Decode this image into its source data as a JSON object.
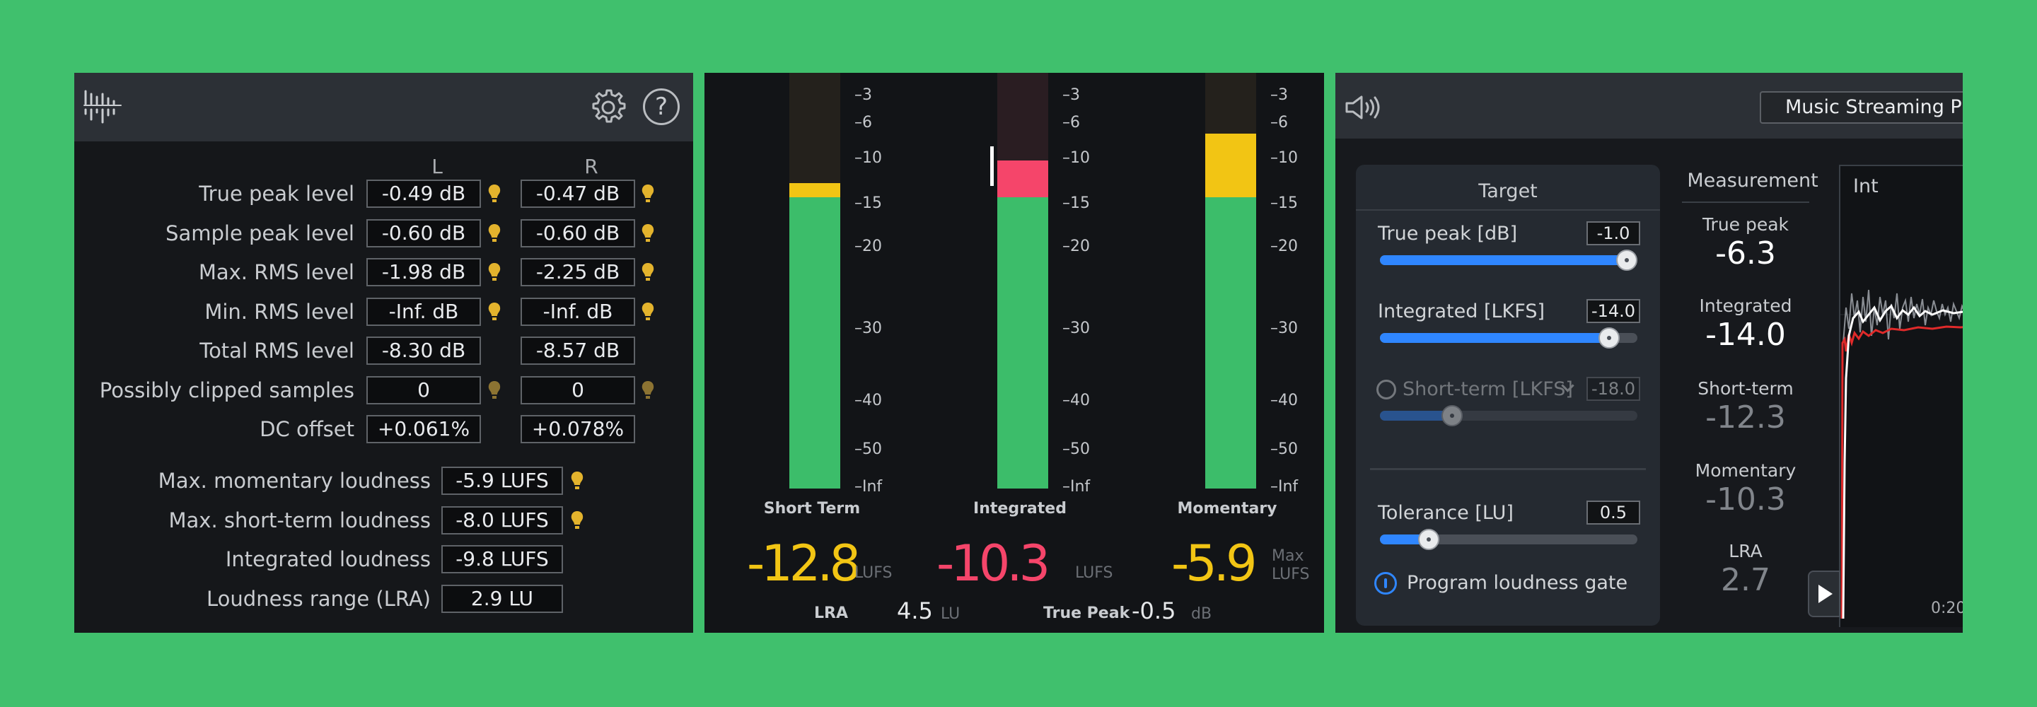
{
  "statistics": {
    "columns": {
      "left": "L",
      "right": "R"
    },
    "rows": [
      {
        "label": "True peak level",
        "left": "-0.49 dB",
        "right": "-0.47 dB",
        "left_indicator": "on",
        "right_indicator": "on"
      },
      {
        "label": "Sample peak level",
        "left": "-0.60 dB",
        "right": "-0.60 dB",
        "left_indicator": "on",
        "right_indicator": "on"
      },
      {
        "label": "Max. RMS level",
        "left": "-1.98 dB",
        "right": "-2.25 dB",
        "left_indicator": "on",
        "right_indicator": "on"
      },
      {
        "label": "Min. RMS level",
        "left": "-Inf. dB",
        "right": "-Inf. dB",
        "left_indicator": "on",
        "right_indicator": "on"
      },
      {
        "label": "Total RMS level",
        "left": "-8.30 dB",
        "right": "-8.57 dB"
      },
      {
        "label": "Possibly clipped samples",
        "left": "0",
        "right": "0",
        "left_indicator": "dim",
        "right_indicator": "dim"
      },
      {
        "label": "DC offset",
        "left": "+0.061%",
        "right": "+0.078%"
      }
    ],
    "loudness_rows": [
      {
        "label": "Max. momentary loudness",
        "value": "-5.9 LUFS",
        "indicator": "on"
      },
      {
        "label": "Max. short-term loudness",
        "value": "-8.0 LUFS",
        "indicator": "on"
      },
      {
        "label": "Integrated loudness",
        "value": "-9.8 LUFS"
      },
      {
        "label": "Loudness range (LRA)",
        "value": "2.9 LU"
      }
    ]
  },
  "meters": {
    "scale_ticks": [
      "-3",
      "-6",
      "-10",
      "-15",
      "-20",
      "-30",
      "-40",
      "-50",
      "-Inf"
    ],
    "columns": [
      {
        "label": "Short Term",
        "value": "-12.8",
        "unit": "LUFS",
        "color": "#f2c514",
        "level_db": -12.8
      },
      {
        "label": "Integrated",
        "value": "-10.3",
        "unit": "LUFS",
        "color": "#f5456a",
        "level_db": -10.3
      },
      {
        "label": "Momentary",
        "value": "-5.9",
        "unit": "LUFS",
        "unit_prefix": "Max",
        "color": "#f2c514",
        "level_db": -5.9
      }
    ],
    "bottom": {
      "lra_label": "LRA",
      "lra_value": "4.5",
      "lra_unit": "LU",
      "true_peak_label": "True Peak",
      "true_peak_value": "-0.5",
      "true_peak_unit": "dB"
    }
  },
  "loudness_target": {
    "preset": "Music Streaming Platforms",
    "target": {
      "title": "Target",
      "sliders": [
        {
          "label": "True peak [dB]",
          "value": "-1.0",
          "fraction": 0.96,
          "enabled": true
        },
        {
          "label": "Integrated [LKFS]",
          "value": "-14.0",
          "fraction": 0.89,
          "enabled": true
        },
        {
          "label": "Short-term [LKFS]",
          "value": "-18.0",
          "fraction": 0.28,
          "enabled": false
        },
        {
          "label": "Tolerance [LU]",
          "value": "0.5",
          "fraction": 0.19,
          "enabled": true
        }
      ],
      "gate_label": "Program loudness gate"
    },
    "measurement": {
      "title": "Measurement",
      "items": [
        {
          "label": "True peak",
          "value": "-6.3",
          "active": true
        },
        {
          "label": "Integrated",
          "value": "-14.0",
          "active": true
        },
        {
          "label": "Short-term",
          "value": "-12.3",
          "active": false
        },
        {
          "label": "Momentary",
          "value": "-10.3",
          "active": false
        },
        {
          "label": "LRA",
          "value": "2.7",
          "active": false
        }
      ]
    },
    "graph": {
      "title": "Int",
      "time_label": "0:20"
    }
  },
  "colors": {
    "background": "#40c06d",
    "accent": "#2f86ff",
    "meter_green": "#3cbd6a",
    "indicator": "#e3b32d"
  },
  "icons": {
    "logo": "meter-bars-icon",
    "settings": "gear-icon",
    "help": "help-icon",
    "speaker": "speaker-icon",
    "play": "play-icon"
  }
}
